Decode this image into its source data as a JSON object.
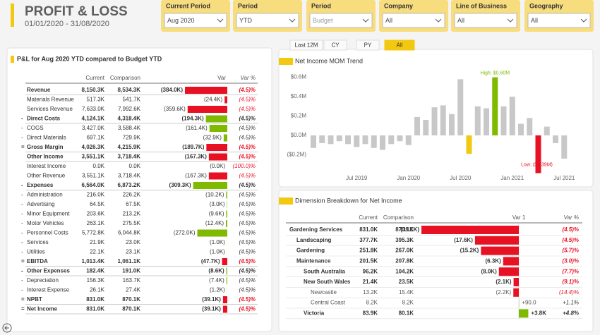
{
  "header": {
    "title": "PROFIT & LOSS",
    "date_range": "01/01/2020 - 31/08/2020"
  },
  "filters": [
    {
      "label": "Current Period",
      "value": "Aug 2020"
    },
    {
      "label": "Period",
      "value": "YTD"
    },
    {
      "label": "Period",
      "value": "Budget"
    },
    {
      "label": "Company",
      "value": "All"
    },
    {
      "label": "Line of Business",
      "value": "All"
    },
    {
      "label": "Geography",
      "value": "All"
    }
  ],
  "period_tabs": {
    "items": [
      "Last 12M",
      "CY",
      "PY",
      "All"
    ],
    "active": 3
  },
  "colors": {
    "unfavorable": "#e81123",
    "favorable": "#7fba00",
    "accent": "#f2c811"
  },
  "pl_table": {
    "title": "P&L for Aug 2020 YTD compared to Budget YTD",
    "columns": [
      "Current",
      "Comparison",
      "Var",
      "Var %"
    ],
    "rows": [
      {
        "label": "Revenue",
        "current": "8,150.3K",
        "comparison": "8,534.3K",
        "var": -384.0,
        "var_label": "(384.0K)",
        "var_pct": "(4.5)%",
        "bold": true,
        "favorable": false
      },
      {
        "label": "Materials Revenue",
        "current": "517.3K",
        "comparison": "541.7K",
        "var": -24.4,
        "var_label": "(24.4K)",
        "var_pct": "(4.5)%",
        "bold": false,
        "favorable": false
      },
      {
        "label": "Services Revenue",
        "current": "7,633.0K",
        "comparison": "7,992.6K",
        "var": -359.6,
        "var_label": "(359.6K)",
        "var_pct": "(4.5)%",
        "bold": false,
        "favorable": false
      },
      {
        "prefix": "-",
        "label": "Direct Costs",
        "current": "4,124.1K",
        "comparison": "4,318.4K",
        "var": -194.3,
        "var_label": "(194.3K)",
        "var_pct": "(4.5)%",
        "bold": true,
        "favorable": true
      },
      {
        "prefix": "-",
        "label": "COGS",
        "current": "3,427.0K",
        "comparison": "3,588.4K",
        "var": -161.4,
        "var_label": "(161.4K)",
        "var_pct": "(4.5)%",
        "bold": false,
        "favorable": true
      },
      {
        "prefix": "-",
        "label": "Direct Materials",
        "current": "697.1K",
        "comparison": "729.9K",
        "var": -32.9,
        "var_label": "(32.9K)",
        "var_pct": "(4.5)%",
        "bold": false,
        "favorable": true
      },
      {
        "prefix": "=",
        "label": "Gross Margin",
        "current": "4,026.3K",
        "comparison": "4,215.9K",
        "var": -189.7,
        "var_label": "(189.7K)",
        "var_pct": "(4.5)%",
        "bold": true,
        "favorable": false
      },
      {
        "label": "Other Income",
        "current": "3,551.1K",
        "comparison": "3,718.4K",
        "var": -167.3,
        "var_label": "(167.3K)",
        "var_pct": "(4.5)%",
        "bold": true,
        "favorable": false
      },
      {
        "label": "Interest Income",
        "current": "0.0K",
        "comparison": "0.0K",
        "var": 0,
        "var_label": "(0.0K)",
        "var_pct": "(100.0)%",
        "bold": false,
        "favorable": false
      },
      {
        "label": "Other Revenue",
        "current": "3,551.1K",
        "comparison": "3,718.4K",
        "var": -167.3,
        "var_label": "(167.3K)",
        "var_pct": "(4.5)%",
        "bold": false,
        "favorable": false
      },
      {
        "prefix": "-",
        "label": "Expenses",
        "current": "6,564.0K",
        "comparison": "6,873.2K",
        "var": -309.3,
        "var_label": "(309.3K)",
        "var_pct": "(4.5)%",
        "bold": true,
        "favorable": true
      },
      {
        "prefix": "-",
        "label": "Administration",
        "current": "216.0K",
        "comparison": "226.2K",
        "var": -10.2,
        "var_label": "(10.2K)",
        "var_pct": "(4.5)%",
        "bold": false,
        "favorable": true
      },
      {
        "prefix": "-",
        "label": "Advertising",
        "current": "64.5K",
        "comparison": "67.5K",
        "var": -3.0,
        "var_label": "(3.0K)",
        "var_pct": "(4.5)%",
        "bold": false,
        "favorable": true
      },
      {
        "prefix": "-",
        "label": "Minor Equipment",
        "current": "203.6K",
        "comparison": "213.2K",
        "var": -9.6,
        "var_label": "(9.6K)",
        "var_pct": "(4.5)%",
        "bold": false,
        "favorable": true
      },
      {
        "prefix": "-",
        "label": "Motor Vehicles",
        "current": "263.1K",
        "comparison": "275.5K",
        "var": -12.4,
        "var_label": "(12.4K)",
        "var_pct": "(4.5)%",
        "bold": false,
        "favorable": true
      },
      {
        "prefix": "-",
        "label": "Personnel Costs",
        "current": "5,772.8K",
        "comparison": "6,044.8K",
        "var": -272.0,
        "var_label": "(272.0K)",
        "var_pct": "(4.5)%",
        "bold": false,
        "favorable": true
      },
      {
        "prefix": "-",
        "label": "Services",
        "current": "21.9K",
        "comparison": "23.0K",
        "var": -1.0,
        "var_label": "(1.0K)",
        "var_pct": "(4.5)%",
        "bold": false,
        "favorable": true
      },
      {
        "prefix": "-",
        "label": "Utilities",
        "current": "22.1K",
        "comparison": "23.1K",
        "var": -1.0,
        "var_label": "(1.0K)",
        "var_pct": "(4.5)%",
        "bold": false,
        "favorable": true
      },
      {
        "prefix": "=",
        "label": "EBITDA",
        "current": "1,013.4K",
        "comparison": "1,061.1K",
        "var": -47.7,
        "var_label": "(47.7K)",
        "var_pct": "(4.5)%",
        "bold": true,
        "favorable": false
      },
      {
        "prefix": "-",
        "label": "Other Expenses",
        "current": "182.4K",
        "comparison": "191.0K",
        "var": -8.6,
        "var_label": "(8.6K)",
        "var_pct": "(4.5)%",
        "bold": true,
        "favorable": true
      },
      {
        "prefix": "-",
        "label": "Depreciation",
        "current": "156.3K",
        "comparison": "163.7K",
        "var": -7.4,
        "var_label": "(7.4K)",
        "var_pct": "(4.5)%",
        "bold": false,
        "favorable": true
      },
      {
        "prefix": "-",
        "label": "Interest Expense",
        "current": "26.1K",
        "comparison": "27.4K",
        "var": -1.2,
        "var_label": "(1.2K)",
        "var_pct": "(4.5)%",
        "bold": false,
        "favorable": true
      },
      {
        "prefix": "=",
        "label": "NPBT",
        "current": "831.0K",
        "comparison": "870.1K",
        "var": -39.1,
        "var_label": "(39.1K)",
        "var_pct": "(4.5)%",
        "bold": true,
        "favorable": false
      },
      {
        "prefix": "=",
        "label": "Net Income",
        "current": "831.0K",
        "comparison": "870.1K",
        "var": -39.1,
        "var_label": "(39.1K)",
        "var_pct": "(4.5)%",
        "bold": true,
        "favorable": false
      }
    ]
  },
  "chart_data": {
    "type": "bar",
    "title": "Net Income MOM Trend",
    "categories": [
      null,
      null,
      null,
      null,
      null,
      "Jul 2019",
      null,
      null,
      null,
      null,
      null,
      "Jan 2020",
      null,
      null,
      null,
      null,
      null,
      "Jul 2020",
      null,
      null,
      null,
      null,
      null,
      "Jan 2021",
      null,
      null,
      null,
      null,
      null,
      "Jul 2021"
    ],
    "values": [
      -0.13,
      -0.08,
      -0.09,
      -0.06,
      -0.09,
      -0.12,
      -0.09,
      -0.13,
      -0.15,
      -0.09,
      -0.06,
      -0.1,
      0.19,
      0.16,
      0.29,
      0.31,
      0.22,
      0.58,
      -0.19,
      0.3,
      0.28,
      0.6,
      0.3,
      0.4,
      0.12,
      0.18,
      -0.39,
      0.09,
      -0.08,
      -0.24
    ],
    "colors": [
      "#c8c8c8",
      "#c8c8c8",
      "#c8c8c8",
      "#c8c8c8",
      "#c8c8c8",
      "#c8c8c8",
      "#c8c8c8",
      "#c8c8c8",
      "#c8c8c8",
      "#c8c8c8",
      "#c8c8c8",
      "#c8c8c8",
      "#c8c8c8",
      "#c8c8c8",
      "#c8c8c8",
      "#c8c8c8",
      "#c8c8c8",
      "#c8c8c8",
      "#f2c811",
      "#c8c8c8",
      "#c8c8c8",
      "#7fba00",
      "#c8c8c8",
      "#c8c8c8",
      "#c8c8c8",
      "#c8c8c8",
      "#e81123",
      "#c8c8c8",
      "#c8c8c8",
      "#c8c8c8"
    ],
    "ylim": [
      -0.35,
      0.67
    ],
    "yticks": [
      {
        "value": 0.6,
        "label": "$0.6M"
      },
      {
        "value": 0.4,
        "label": "$0.4M"
      },
      {
        "value": 0.2,
        "label": "$0.2M"
      },
      {
        "value": 0,
        "label": "$0.0M"
      },
      {
        "value": -0.2,
        "label": "($0.2M)"
      }
    ],
    "grid": false,
    "annotations": {
      "high": "High: $0.60M",
      "low": "Low: ($0.39M)"
    }
  },
  "breakdown_table": {
    "title": "Dimension Breakdown for Net Income",
    "columns": [
      "Current",
      "Comparison",
      "Var 1",
      "Var %"
    ],
    "rows": [
      {
        "label": "Gardening Services",
        "current": "831.0K",
        "comparison": "870.1K",
        "var": -39.1,
        "var_label": "(39.1K)",
        "var_pct": "(4.5)%",
        "level": 0
      },
      {
        "label": "Landscaping",
        "current": "377.7K",
        "comparison": "395.3K",
        "var": -17.6,
        "var_label": "(17.6K)",
        "var_pct": "(4.5)%",
        "level": 1
      },
      {
        "label": "Gardening",
        "current": "251.8K",
        "comparison": "267.0K",
        "var": -15.2,
        "var_label": "(15.2K)",
        "var_pct": "(5.7)%",
        "level": 1
      },
      {
        "label": "Maintenance",
        "current": "201.5K",
        "comparison": "207.8K",
        "var": -6.3,
        "var_label": "(6.3K)",
        "var_pct": "(3.0)%",
        "level": 1
      },
      {
        "label": "South Australia",
        "current": "96.2K",
        "comparison": "104.2K",
        "var": -8.0,
        "var_label": "(8.0K)",
        "var_pct": "(7.7)%",
        "level": 2
      },
      {
        "label": "New South Wales",
        "current": "21.4K",
        "comparison": "23.5K",
        "var": -2.1,
        "var_label": "(2.1K)",
        "var_pct": "(9.1)%",
        "level": 2
      },
      {
        "label": "Newcastle",
        "current": "13.2K",
        "comparison": "15.4K",
        "var": -2.2,
        "var_label": "(2.2K)",
        "var_pct": "(14.4)%",
        "level": 3
      },
      {
        "label": "Central Coast",
        "current": "8.2K",
        "comparison": "8.2K",
        "var": 0.09,
        "var_label": "+90.0",
        "var_pct": "+1.1%",
        "level": 3
      },
      {
        "label": "Victoria",
        "current": "83.9K",
        "comparison": "80.1K",
        "var": 3.8,
        "var_label": "+3.8K",
        "var_pct": "+4.8%",
        "level": 2
      }
    ]
  }
}
